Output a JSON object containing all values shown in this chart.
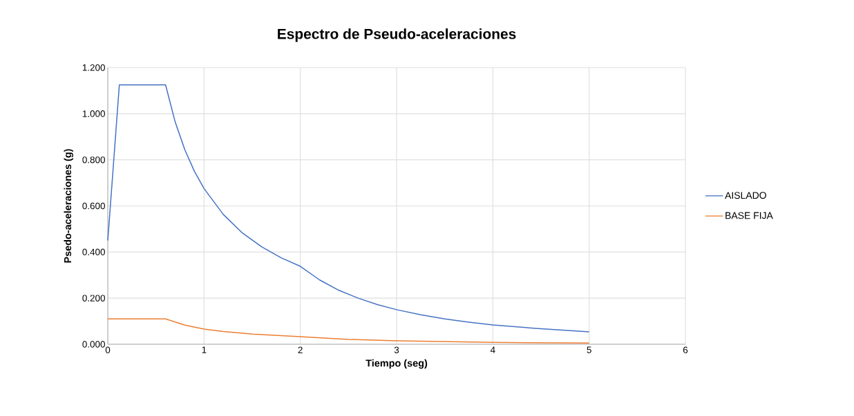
{
  "chart_data": {
    "type": "line",
    "title": "Espectro de Pseudo-aceleraciones",
    "xlabel": "Tiempo (seg)",
    "ylabel": "Psedo-aceleraciones (g)",
    "xlim": [
      0,
      6
    ],
    "xticks": [
      0,
      1,
      2,
      3,
      4,
      5,
      6
    ],
    "ylim": [
      0,
      1.2
    ],
    "yticks": [
      {
        "value": 0,
        "label": "0.000"
      },
      {
        "value": 0.2,
        "label": "0.200"
      },
      {
        "value": 0.4,
        "label": "0.400"
      },
      {
        "value": 0.6,
        "label": "0.600"
      },
      {
        "value": 0.8,
        "label": "0.800"
      },
      {
        "value": 1.0,
        "label": "1.000"
      },
      {
        "value": 1.2,
        "label": "1.200"
      }
    ],
    "grid": true,
    "legend": "right",
    "marker": "none",
    "line_style": "solid",
    "series": [
      {
        "name": "AISLADO",
        "color": "#4472c4",
        "x": [
          0,
          0.12,
          0.6,
          0.7,
          0.8,
          0.9,
          1.0,
          1.2,
          1.4,
          1.6,
          1.8,
          2.0,
          2.2,
          2.4,
          2.6,
          2.8,
          3.0,
          3.25,
          3.5,
          3.75,
          4.0,
          4.5,
          5.0
        ],
        "values": [
          0.45,
          1.125,
          1.125,
          0.964,
          0.844,
          0.75,
          0.675,
          0.563,
          0.482,
          0.422,
          0.375,
          0.338,
          0.279,
          0.234,
          0.2,
          0.172,
          0.15,
          0.128,
          0.11,
          0.096,
          0.084,
          0.067,
          0.054
        ]
      },
      {
        "name": "BASE FIJA",
        "color": "#ed7d31",
        "x": [
          0,
          0.6,
          0.8,
          1.0,
          1.2,
          1.5,
          2.0,
          2.5,
          3.0,
          4.0,
          5.0
        ],
        "values": [
          0.11,
          0.11,
          0.083,
          0.066,
          0.055,
          0.044,
          0.033,
          0.021,
          0.015,
          0.008,
          0.005
        ]
      }
    ]
  }
}
